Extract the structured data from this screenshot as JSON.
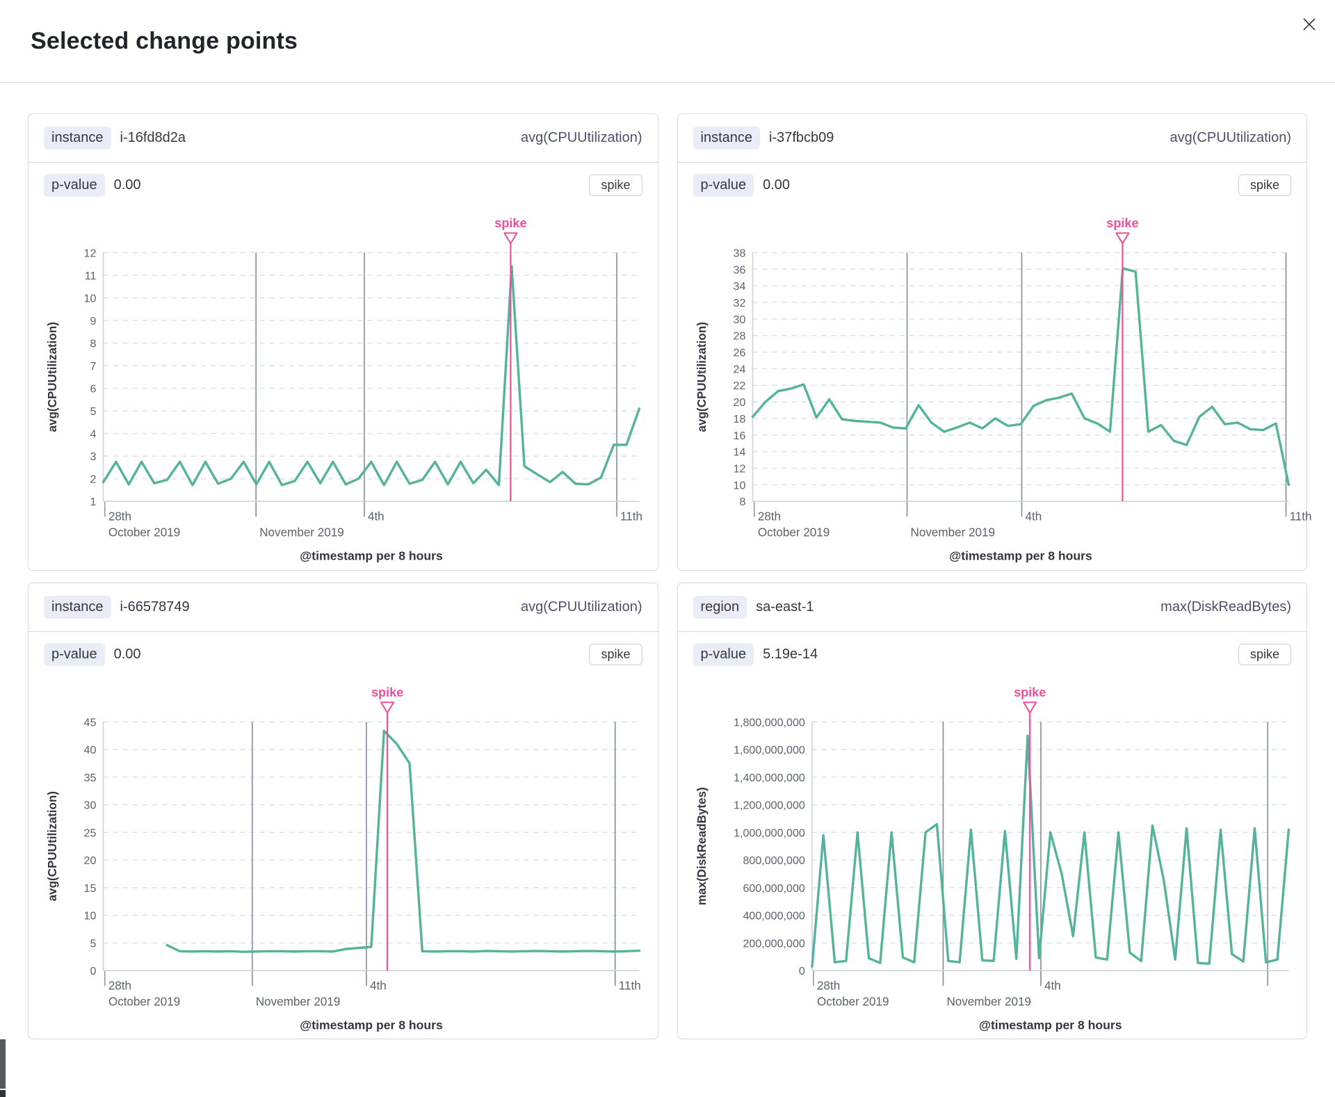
{
  "modal": {
    "title": "Selected change points"
  },
  "colors": {
    "line": "#54B399",
    "annotation": "#F04E98",
    "grid_dash": "#D9DFEA",
    "grid_vertical": "#848D99",
    "axis": "#CCD3DF",
    "tick_text": "#5A6270",
    "axis_title": "#343741"
  },
  "panels": [
    {
      "field_label": "instance",
      "field_value": "i-16fd8d2a",
      "metric": "avg(CPUUtilization)",
      "p_label": "p-value",
      "p_value": "0.00",
      "change_type": "spike"
    },
    {
      "field_label": "instance",
      "field_value": "i-37fbcb09",
      "metric": "avg(CPUUtilization)",
      "p_label": "p-value",
      "p_value": "0.00",
      "change_type": "spike"
    },
    {
      "field_label": "instance",
      "field_value": "i-66578749",
      "metric": "avg(CPUUtilization)",
      "p_label": "p-value",
      "p_value": "0.00",
      "change_type": "spike"
    },
    {
      "field_label": "region",
      "field_value": "sa-east-1",
      "metric": "max(DiskReadBytes)",
      "p_label": "p-value",
      "p_value": "5.19e-14",
      "change_type": "spike"
    }
  ],
  "chart_data": [
    {
      "type": "line",
      "ylabel": "avg(CPUUtilization)",
      "xlabel": "@timestamp per 8 hours",
      "ylim": [
        1,
        12
      ],
      "ytick_step": 1,
      "y_format": "plain",
      "grid": true,
      "legend": "none",
      "xticks": [
        {
          "f": 0.003,
          "line1": "28th",
          "line2": "October 2019",
          "grid": false
        },
        {
          "f": 0.285,
          "line1": "",
          "line2": "November 2019",
          "grid": true
        },
        {
          "f": 0.487,
          "line1": "4th",
          "line2": "",
          "grid": true
        },
        {
          "f": 0.958,
          "line1": "11th",
          "line2": "",
          "grid": true
        }
      ],
      "annotation": {
        "label": "spike",
        "f": 0.76
      },
      "values": [
        1.85,
        2.75,
        1.75,
        2.75,
        1.8,
        1.95,
        2.75,
        1.72,
        2.75,
        1.78,
        2.0,
        2.75,
        1.75,
        2.75,
        1.72,
        1.9,
        2.75,
        1.8,
        2.75,
        1.75,
        2.0,
        2.75,
        1.72,
        2.75,
        1.78,
        1.95,
        2.75,
        1.75,
        2.75,
        1.8,
        2.4,
        1.72,
        11.4,
        2.55,
        2.2,
        1.85,
        2.3,
        1.78,
        1.75,
        2.05,
        3.5,
        3.5,
        5.1
      ],
      "layout": {
        "margin_left": 95
      }
    },
    {
      "type": "line",
      "ylabel": "avg(CPUUtilization)",
      "xlabel": "@timestamp per 8 hours",
      "ylim": [
        8,
        38
      ],
      "ytick_step": 2,
      "y_format": "plain",
      "grid": true,
      "legend": "none",
      "xticks": [
        {
          "f": 0.003,
          "line1": "28th",
          "line2": "October 2019",
          "grid": false
        },
        {
          "f": 0.288,
          "line1": "",
          "line2": "November 2019",
          "grid": true
        },
        {
          "f": 0.502,
          "line1": "4th",
          "line2": "",
          "grid": true
        },
        {
          "f": 0.995,
          "line1": "11th",
          "line2": "",
          "grid": true
        }
      ],
      "annotation": {
        "label": "spike",
        "f": 0.69
      },
      "values": [
        18.2,
        20.0,
        21.3,
        21.6,
        22.1,
        18.1,
        20.3,
        17.9,
        17.7,
        17.6,
        17.5,
        16.9,
        16.8,
        19.6,
        17.5,
        16.4,
        16.9,
        17.5,
        16.8,
        18.0,
        17.1,
        17.3,
        19.5,
        20.2,
        20.5,
        21.0,
        18.0,
        17.4,
        16.4,
        36.1,
        35.7,
        16.4,
        17.2,
        15.3,
        14.8,
        18.2,
        19.4,
        17.3,
        17.5,
        16.7,
        16.6,
        17.4,
        10.0
      ],
      "layout": {
        "margin_left": 95
      }
    },
    {
      "type": "line",
      "ylabel": "avg(CPUUtilization)",
      "xlabel": "@timestamp per 8 hours",
      "ylim": [
        0,
        45
      ],
      "ytick_step": 5,
      "y_format": "plain",
      "grid": true,
      "legend": "none",
      "xticks": [
        {
          "f": 0.003,
          "line1": "28th",
          "line2": "October 2019",
          "grid": false
        },
        {
          "f": 0.278,
          "line1": "",
          "line2": "November 2019",
          "grid": true
        },
        {
          "f": 0.491,
          "line1": "4th",
          "line2": "",
          "grid": true
        },
        {
          "f": 0.955,
          "line1": "11th",
          "line2": "",
          "grid": true
        }
      ],
      "annotation": {
        "label": "spike",
        "f": 0.53
      },
      "values": [
        null,
        null,
        null,
        null,
        null,
        4.6,
        3.5,
        3.45,
        3.5,
        3.45,
        3.5,
        3.4,
        3.45,
        3.5,
        3.5,
        3.45,
        3.5,
        3.5,
        3.45,
        3.9,
        4.1,
        4.3,
        43.4,
        41.0,
        37.5,
        3.5,
        3.45,
        3.5,
        3.5,
        3.45,
        3.55,
        3.5,
        3.45,
        3.5,
        3.55,
        3.5,
        3.45,
        3.5,
        3.55,
        3.5,
        3.45,
        3.5,
        3.6
      ],
      "layout": {
        "margin_left": 95
      }
    },
    {
      "type": "line",
      "ylabel": "max(DiskReadBytes)",
      "xlabel": "@timestamp per 8 hours",
      "ylim": [
        0,
        1800000000
      ],
      "ytick_step": 200000000,
      "y_format": "comma",
      "grid": true,
      "legend": "none",
      "xticks": [
        {
          "f": 0.003,
          "line1": "28th",
          "line2": "October 2019",
          "grid": false
        },
        {
          "f": 0.275,
          "line1": "",
          "line2": "November 2019",
          "grid": true
        },
        {
          "f": 0.48,
          "line1": "4th",
          "line2": "",
          "grid": true
        },
        {
          "f": 0.956,
          "line1": "",
          "line2": "",
          "grid": true
        }
      ],
      "annotation": {
        "label": "spike",
        "f": 0.457
      },
      "values": [
        30000000,
        980000000,
        60000000,
        70000000,
        1000000000,
        90000000,
        55000000,
        1000000000,
        95000000,
        60000000,
        1000000000,
        1060000000,
        70000000,
        60000000,
        1020000000,
        75000000,
        70000000,
        1010000000,
        85000000,
        1700000000,
        90000000,
        1000000000,
        700000000,
        250000000,
        1000000000,
        95000000,
        80000000,
        1000000000,
        130000000,
        70000000,
        1050000000,
        650000000,
        80000000,
        1030000000,
        55000000,
        50000000,
        1020000000,
        120000000,
        65000000,
        1030000000,
        60000000,
        80000000,
        1020000000
      ],
      "layout": {
        "margin_left": 180
      }
    }
  ]
}
